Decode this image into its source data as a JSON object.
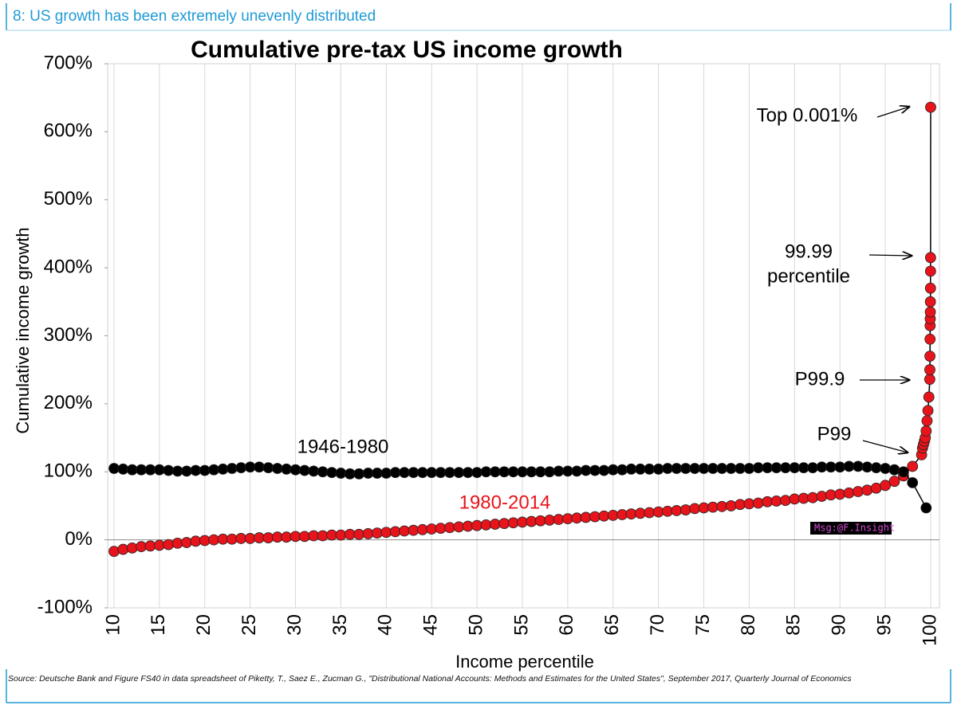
{
  "header": "8: US growth has been extremely unevenly distributed",
  "source": "Source: Deutsche Bank and Figure FS40 in data spreadsheet of Piketty, T., Saez E., Zucman G., \"Distributional National Accounts: Methods and Estimates for the United States\", September 2017, Quarterly Journal of Economics",
  "watermark": "Msg:@F.Insight",
  "chart_data": {
    "type": "scatter",
    "title": "Cumulative pre-tax US income growth",
    "x_label": "Income percentile",
    "y_label": "Cumulative income growth",
    "xlim": [
      10,
      100
    ],
    "xticks": [
      10,
      15,
      20,
      25,
      30,
      35,
      40,
      45,
      50,
      55,
      60,
      65,
      70,
      75,
      80,
      85,
      90,
      95,
      100
    ],
    "ylim": [
      -100,
      700
    ],
    "yticks": [
      {
        "value": -100,
        "label": "-100%"
      },
      {
        "value": 0,
        "label": "0%"
      },
      {
        "value": 100,
        "label": "100%"
      },
      {
        "value": 200,
        "label": "200%"
      },
      {
        "value": 300,
        "label": "300%"
      },
      {
        "value": 400,
        "label": "400%"
      },
      {
        "value": 500,
        "label": "500%"
      },
      {
        "value": 600,
        "label": "600%"
      },
      {
        "value": 700,
        "label": "700%"
      }
    ],
    "grid": true,
    "series": [
      {
        "name": "1980-2014",
        "color": "#e8141b",
        "x": [
          10,
          11,
          12,
          13,
          14,
          15,
          16,
          17,
          18,
          19,
          20,
          21,
          22,
          23,
          24,
          25,
          26,
          27,
          28,
          29,
          30,
          31,
          32,
          33,
          34,
          35,
          36,
          37,
          38,
          39,
          40,
          41,
          42,
          43,
          44,
          45,
          46,
          47,
          48,
          49,
          50,
          51,
          52,
          53,
          54,
          55,
          56,
          57,
          58,
          59,
          60,
          61,
          62,
          63,
          64,
          65,
          66,
          67,
          68,
          69,
          70,
          71,
          72,
          73,
          74,
          75,
          76,
          77,
          78,
          79,
          80,
          81,
          82,
          83,
          84,
          85,
          86,
          87,
          88,
          89,
          90,
          91,
          92,
          93,
          94,
          95,
          96,
          97,
          98,
          99,
          99.1,
          99.2,
          99.3,
          99.4,
          99.5,
          99.6,
          99.7,
          99.8,
          99.9,
          99.91,
          99.92,
          99.93,
          99.94,
          99.95,
          99.96,
          99.97,
          99.98,
          99.985,
          99.99,
          99.999
        ],
        "values": [
          -17,
          -14,
          -12,
          -10,
          -9,
          -8,
          -7,
          -5,
          -4,
          -2,
          -1,
          0,
          1,
          1,
          2,
          2,
          3,
          3,
          4,
          4,
          5,
          5,
          6,
          6,
          7,
          7,
          8,
          8,
          9,
          10,
          11,
          12,
          13,
          14,
          15,
          16,
          17,
          18,
          19,
          20,
          21,
          22,
          23,
          24,
          25,
          26,
          27,
          28,
          29,
          30,
          31,
          32,
          33,
          34,
          35,
          36,
          37,
          38,
          39,
          40,
          41,
          42,
          43,
          44,
          46,
          47,
          48,
          49,
          50,
          52,
          53,
          54,
          56,
          57,
          58,
          60,
          61,
          62,
          64,
          66,
          67,
          69,
          71,
          73,
          76,
          80,
          86,
          94,
          108,
          125,
          135,
          140,
          145,
          150,
          160,
          175,
          190,
          210,
          236,
          250,
          270,
          295,
          315,
          325,
          335,
          350,
          370,
          395,
          415,
          636
        ]
      },
      {
        "name": "1946-1980",
        "color": "#000000",
        "x": [
          10,
          11,
          12,
          13,
          14,
          15,
          16,
          17,
          18,
          19,
          20,
          21,
          22,
          23,
          24,
          25,
          26,
          27,
          28,
          29,
          30,
          31,
          32,
          33,
          34,
          35,
          36,
          37,
          38,
          39,
          40,
          41,
          42,
          43,
          44,
          45,
          46,
          47,
          48,
          49,
          50,
          51,
          52,
          53,
          54,
          55,
          56,
          57,
          58,
          59,
          60,
          61,
          62,
          63,
          64,
          65,
          66,
          67,
          68,
          69,
          70,
          71,
          72,
          73,
          74,
          75,
          76,
          77,
          78,
          79,
          80,
          81,
          82,
          83,
          84,
          85,
          86,
          87,
          88,
          89,
          90,
          91,
          92,
          93,
          94,
          95,
          96,
          97,
          98,
          99.5
        ],
        "values": [
          105,
          104,
          103,
          103,
          103,
          103,
          102,
          101,
          101,
          102,
          102,
          103,
          104,
          105,
          106,
          107,
          107,
          106,
          105,
          104,
          103,
          102,
          101,
          100,
          99,
          98,
          97,
          97,
          98,
          98,
          98,
          99,
          99,
          99,
          99,
          99,
          99,
          99,
          99,
          99,
          99,
          100,
          100,
          100,
          100,
          100,
          100,
          100,
          100,
          101,
          101,
          101,
          102,
          102,
          102,
          103,
          103,
          104,
          104,
          104,
          104,
          105,
          105,
          105,
          105,
          105,
          105,
          105,
          105,
          105,
          105,
          106,
          106,
          106,
          106,
          106,
          106,
          106,
          107,
          107,
          107,
          108,
          108,
          107,
          106,
          105,
          103,
          100,
          84,
          47
        ]
      }
    ],
    "annotations": [
      "Top 0.001%",
      "99.99",
      "percentile",
      "P99.9",
      "P99"
    ]
  }
}
